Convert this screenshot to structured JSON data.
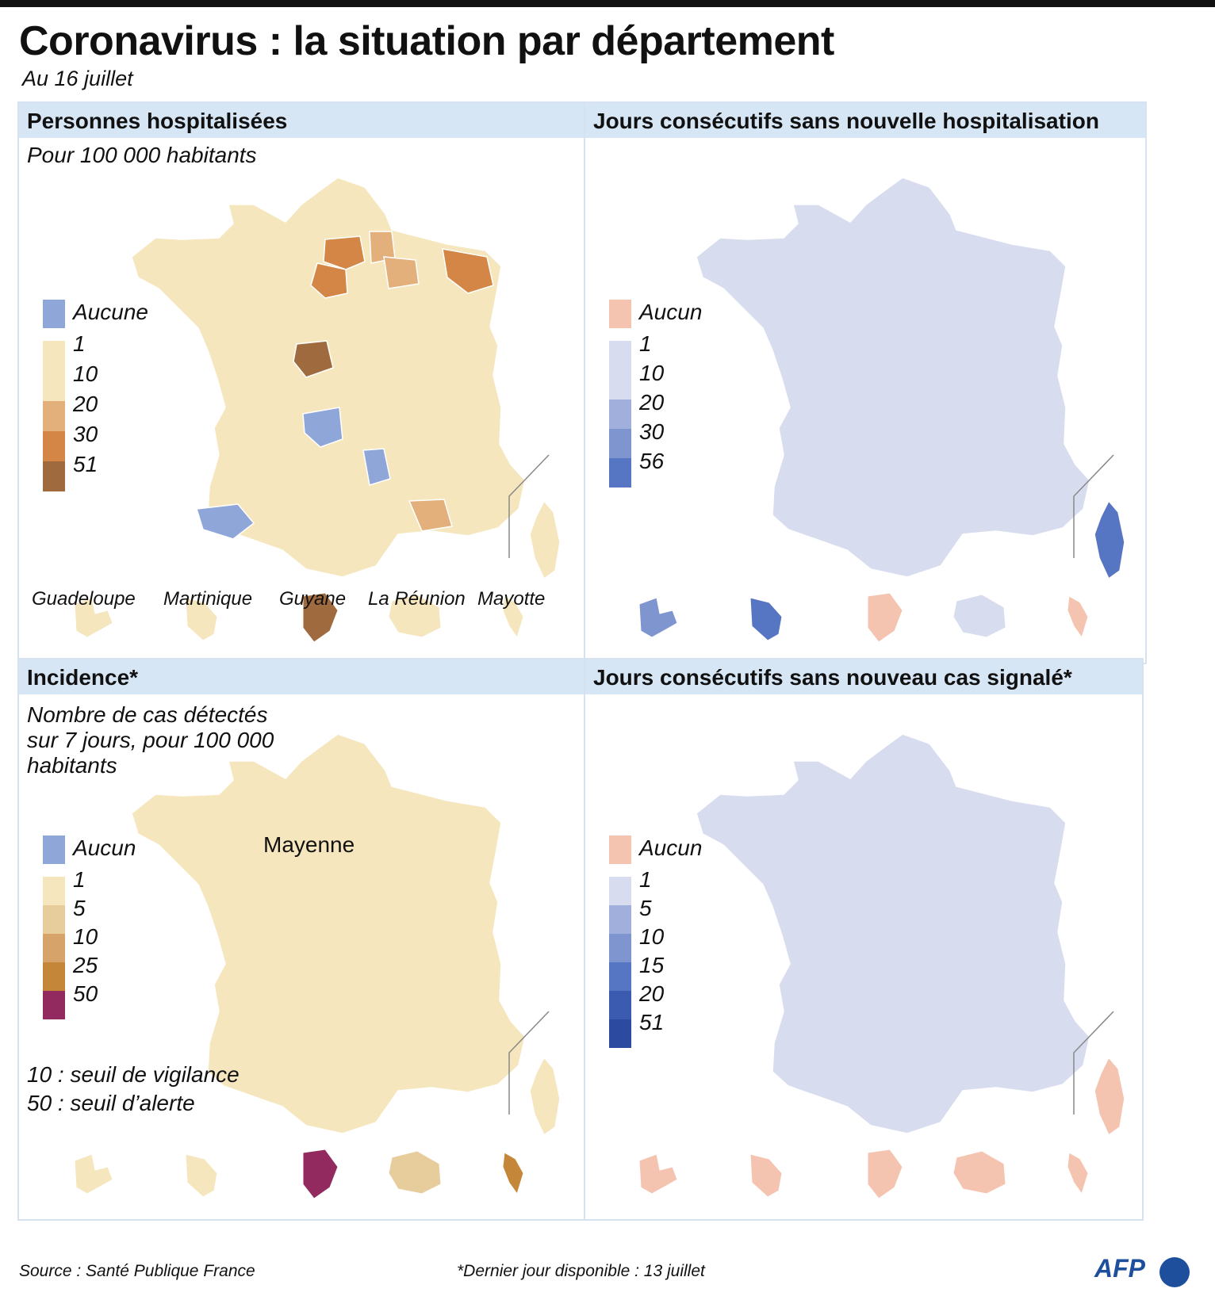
{
  "title": "Coronavirus : la situation par département",
  "subtitle": "Au 16 juillet",
  "colors": {
    "blue_aucune": "#8fa6d8",
    "beige_1": "#f5e6bd",
    "tan_10": "#e3b07c",
    "orange_20": "#d38645",
    "brown_30": "#a06a3f",
    "pink_aucun": "#f5c4b0",
    "pale_blue": "#d8dcef",
    "blue_10": "#a0afdc",
    "blue_20": "#7e95d0",
    "blue_30": "#5675c2",
    "blue_56": "#3a5bb0",
    "beige_10": "#e7cc9c",
    "tan_25": "#d6a46a",
    "orange_50": "#c48638",
    "purple": "#922a5f"
  },
  "panels": [
    {
      "id": "hospitalises",
      "header": "Personnes hospitalisées",
      "note": "Pour 100 000 habitants",
      "legend": [
        {
          "label": "Aucune",
          "color": "#8fa6d8"
        },
        {
          "label": "1",
          "color": "#f5e6bd"
        },
        {
          "label": "10",
          "color": "#f5e6bd"
        },
        {
          "label": "20",
          "color": "#e3b07c"
        },
        {
          "label": "30",
          "color": "#d38645"
        },
        {
          "label": "51",
          "color": "#a06a3f"
        }
      ],
      "dom_colors": [
        "#f5e6bd",
        "#f5e6bd",
        "#a06a3f",
        "#f5e6bd",
        "#f5e6bd"
      ],
      "corsica_color": "#f5e6bd",
      "highlights": [
        "#d38645",
        "#d38645",
        "#e3b07c",
        "#e3b07c",
        "#a06a3f",
        "#8fa6d8",
        "#8fa6d8",
        "#8fa6d8",
        "#e3b07c",
        "#d38645"
      ]
    },
    {
      "id": "jours-hosp",
      "header": "Jours consécutifs sans nouvelle hospitalisation",
      "legend": [
        {
          "label": "Aucun",
          "color": "#f5c4b0"
        },
        {
          "label": "1",
          "color": "#d8dcef"
        },
        {
          "label": "10",
          "color": "#d8dcef"
        },
        {
          "label": "20",
          "color": "#a0afdc"
        },
        {
          "label": "30",
          "color": "#7e95d0"
        },
        {
          "label": "56",
          "color": "#5675c2"
        }
      ],
      "dom_colors": [
        "#7e95d0",
        "#5675c2",
        "#f5c4b0",
        "#d8dcef",
        "#f5c4b0"
      ],
      "corsica_color": "#5675c2"
    },
    {
      "id": "incidence",
      "header": "Incidence*",
      "note": "Nombre de cas détectés sur 7 jours, pour 100 000 habitants",
      "note_lines": [
        "Nombre de cas détectés",
        "sur 7 jours, pour 100 000",
        "habitants"
      ],
      "legend": [
        {
          "label": "Aucun",
          "color": "#8fa6d8"
        },
        {
          "label": "1",
          "color": "#f5e6bd"
        },
        {
          "label": "5",
          "color": "#e7cc9c"
        },
        {
          "label": "10",
          "color": "#d6a46a"
        },
        {
          "label": "25",
          "color": "#c48638"
        },
        {
          "label": "50",
          "color": "#922a5f"
        }
      ],
      "mayenne_label": "Mayenne",
      "thresholds": [
        "10 : seuil de vigilance",
        "50 : seuil d’alerte"
      ],
      "dom_colors": [
        "#f5e6bd",
        "#f5e6bd",
        "#922a5f",
        "#e7cc9c",
        "#c48638"
      ],
      "corsica_color": "#f5e6bd"
    },
    {
      "id": "jours-cas",
      "header": "Jours consécutifs sans nouveau cas signalé*",
      "legend": [
        {
          "label": "Aucun",
          "color": "#f5c4b0"
        },
        {
          "label": "1",
          "color": "#d8dcef"
        },
        {
          "label": "5",
          "color": "#a0afdc"
        },
        {
          "label": "10",
          "color": "#7e95d0"
        },
        {
          "label": "15",
          "color": "#5675c2"
        },
        {
          "label": "20",
          "color": "#3a5bb0"
        },
        {
          "label": "51",
          "color": "#2b4aa0"
        }
      ],
      "dom_colors": [
        "#f5c4b0",
        "#f5c4b0",
        "#f5c4b0",
        "#f5c4b0",
        "#f5c4b0"
      ],
      "corsica_color": "#f5c4b0"
    }
  ],
  "dom_labels": [
    "Guadeloupe",
    "Martinique",
    "Guyane",
    "La Réunion",
    "Mayotte"
  ],
  "footer": {
    "source": "Source : Santé Publique France",
    "note": "*Dernier jour disponible : 13 juillet",
    "logo": "AFP"
  }
}
